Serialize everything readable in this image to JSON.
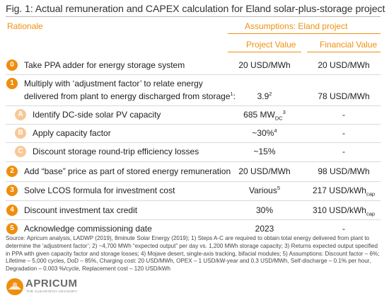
{
  "title": "Fig. 1: Actual remuneration and CAPEX calculation for Eland solar-plus-storage project",
  "headers": {
    "rationale": "Rationale",
    "assumptions": "Assumptions: Eland project",
    "project_value": "Project Value",
    "financial_value": "Financial Value"
  },
  "rows": [
    {
      "badge": "0",
      "label": "Take PPA adder for energy storage system",
      "pv": "20 USD/MWh",
      "fv": "20 USD/MWh"
    },
    {
      "badge": "1",
      "label_line1": "Multiply with ‘adjustment factor’ to relate energy",
      "label_line2": "delivered from plant to energy discharged from storage",
      "label_sup": "1",
      "label_colon": ":",
      "pv": "3.9",
      "pv_sup": "2",
      "fv": "78 USD/MWh"
    },
    {
      "badge": "A",
      "label": "Identify DC-side solar PV capacity",
      "pv": "685 MW",
      "pv_sub": "DC",
      "pv_sup": "3",
      "fv": "-"
    },
    {
      "badge": "B",
      "label": "Apply capacity factor",
      "pv": "~30%",
      "pv_sup": "4",
      "fv": "-"
    },
    {
      "badge": "C",
      "label": "Discount storage round-trip efficiency losses",
      "pv": "~15%",
      "fv": "-"
    },
    {
      "badge": "2",
      "label": "Add “base” price as part of stored energy remuneration",
      "pv": "20 USD/MWh",
      "fv": "98 USD/MWh"
    },
    {
      "badge": "3",
      "label": "Solve LCOS formula for investment cost",
      "pv": "Various",
      "pv_sup": "5",
      "fv": "217 USD/kWh",
      "fv_sub": "cap"
    },
    {
      "badge": "4",
      "label": "Discount investment tax credit",
      "pv": "30%",
      "fv": "310 USD/kWh",
      "fv_sub": "cap"
    },
    {
      "badge": "5",
      "label": "Acknowledge commissioning date",
      "pv": "2023",
      "fv": "-"
    }
  ],
  "source": "Source: Apricum analysis, LADWP (2019), 8minute Solar Energy (2019); 1) Steps A-C are required to obtain total energy delivered from plant to determine the ‘adjustment factor’; 2) ~4,700 MWh “expected output” per day vs. 1,200 MWh storage capacity; 3) Returns expected output specified in PPA with given capacity factor and storage losses; 4) Mojave desert, single-axis tracking, bifacial modules; 5) Assumptions: Discount factor – 6%; Lifetime – 5,000 cycles, DoD – 85%, Charging cost: 20 USD/MWh, OPEX – 1 USD/kW-year and 0.3 USD/MWh, Self-discharge – 0.1% per hour, Degradation – 0.003 %/cycle, Replacement cost – 120 USD/kWh",
  "logo": {
    "brand": "APRICUM",
    "tagline": "THE CLEANTECH ADVISORY",
    "icon": "apricum-sun-logo-icon",
    "colors": {
      "orange": "#ee8e0c",
      "light_orange": "#f8c896",
      "gray": "#6b6b6b"
    }
  }
}
